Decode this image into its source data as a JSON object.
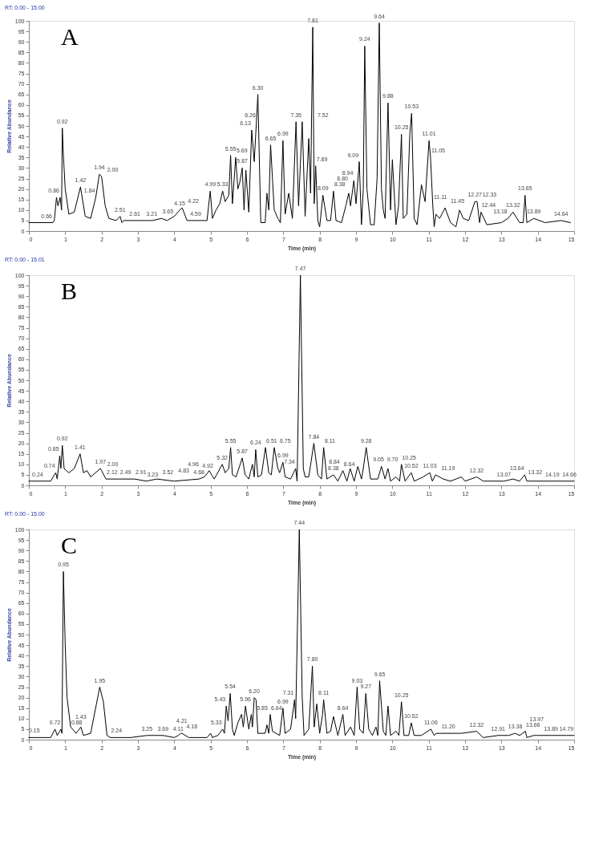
{
  "chart_data": [
    {
      "type": "line",
      "title": "A",
      "subtitle": "RT: 0.00 - 15.00",
      "xlabel": "Time (min)",
      "ylabel": "Relative Abundance",
      "xlim": [
        0,
        15
      ],
      "ylim": [
        0,
        100
      ],
      "xticks": [
        0,
        1,
        2,
        3,
        4,
        5,
        6,
        7,
        8,
        9,
        10,
        11,
        12,
        13,
        14,
        15
      ],
      "yticks": [
        0,
        5,
        10,
        15,
        20,
        25,
        30,
        35,
        40,
        45,
        50,
        55,
        60,
        65,
        70,
        75,
        80,
        85,
        90,
        95,
        100
      ],
      "grid": false,
      "legend": false,
      "series": [
        {
          "color": "#000000",
          "x": [
            0,
            0.66,
            0.7,
            0.76,
            0.8,
            0.86,
            0.9,
            0.92,
            0.95,
            1.0,
            1.1,
            1.25,
            1.42,
            1.55,
            1.7,
            1.84,
            1.94,
            2.0,
            2.1,
            2.2,
            2.4,
            2.51,
            2.56,
            2.61,
            3.0,
            3.21,
            3.4,
            3.65,
            3.8,
            4.0,
            4.15,
            4.22,
            4.35,
            4.59,
            4.9,
            4.99,
            5.05,
            5.15,
            5.25,
            5.33,
            5.4,
            5.5,
            5.55,
            5.6,
            5.69,
            5.75,
            5.8,
            5.87,
            5.92,
            5.97,
            6.05,
            6.13,
            6.2,
            6.26,
            6.3,
            6.38,
            6.5,
            6.55,
            6.6,
            6.65,
            6.75,
            6.85,
            6.92,
            6.99,
            7.05,
            7.15,
            7.25,
            7.35,
            7.42,
            7.52,
            7.6,
            7.7,
            7.75,
            7.81,
            7.85,
            7.89,
            7.95,
            8.0,
            8.09,
            8.2,
            8.3,
            8.38,
            8.45,
            8.6,
            8.72,
            8.8,
            8.85,
            8.94,
            9.0,
            9.09,
            9.15,
            9.2,
            9.24,
            9.3,
            9.4,
            9.5,
            9.58,
            9.64,
            9.7,
            9.75,
            9.8,
            9.88,
            9.95,
            10.0,
            10.1,
            10.17,
            10.25,
            10.3,
            10.4,
            10.48,
            10.53,
            10.6,
            10.68,
            10.8,
            10.9,
            11.01,
            11.05,
            11.11,
            11.15,
            11.2,
            11.3,
            11.45,
            11.6,
            11.75,
            11.85,
            11.95,
            12.1,
            12.27,
            12.33,
            12.4,
            12.44,
            12.6,
            13.0,
            13.18,
            13.32,
            13.5,
            13.6,
            13.65,
            13.7,
            13.89,
            14.2,
            14.64,
            14.9
          ],
          "values": [
            4,
            4,
            5,
            16,
            12,
            16,
            10,
            49,
            36,
            20,
            8,
            9,
            21,
            7,
            6,
            16,
            27,
            26,
            12,
            6,
            5,
            7,
            4,
            5,
            5,
            5,
            5,
            6,
            5,
            7,
            10,
            11,
            5,
            5,
            5,
            19,
            6,
            10,
            13,
            19,
            14,
            17,
            36,
            13,
            35,
            20,
            23,
            30,
            10,
            29,
            9,
            48,
            33,
            52,
            65,
            4,
            4,
            18,
            10,
            41,
            10,
            6,
            4,
            43,
            8,
            18,
            6,
            52,
            12,
            52,
            7,
            44,
            18,
            97,
            13,
            31,
            5,
            2,
            17,
            5,
            5,
            19,
            5,
            4,
            12,
            18,
            12,
            24,
            13,
            33,
            3,
            20,
            88,
            20,
            3,
            3,
            25,
            99,
            20,
            10,
            6,
            61,
            10,
            34,
            3,
            12,
            46,
            6,
            8,
            46,
            56,
            6,
            3,
            22,
            14,
            43,
            35,
            13,
            2,
            8,
            6,
            11,
            4,
            2,
            10,
            6,
            5,
            14,
            14,
            4,
            9,
            3,
            4,
            6,
            9,
            4,
            4,
            17,
            4,
            6,
            4,
            5,
            4
          ]
        }
      ],
      "annotations": [
        {
          "text": "0.66",
          "x": 0.66,
          "y": 4
        },
        {
          "text": "0.86",
          "x": 0.86,
          "y": 16
        },
        {
          "text": "0.92",
          "x": 0.92,
          "y": 49
        },
        {
          "text": "1.42",
          "x": 1.42,
          "y": 21
        },
        {
          "text": "1.84",
          "x": 1.84,
          "y": 16
        },
        {
          "text": "1.94",
          "x": 1.94,
          "y": 27
        },
        {
          "text": "2.00",
          "x": 2.0,
          "y": 26
        },
        {
          "text": "2.51",
          "x": 2.51,
          "y": 7
        },
        {
          "text": "2.61",
          "x": 2.61,
          "y": 5
        },
        {
          "text": "3.21",
          "x": 3.21,
          "y": 5
        },
        {
          "text": "3.65",
          "x": 3.65,
          "y": 6
        },
        {
          "text": "4.15",
          "x": 4.15,
          "y": 10
        },
        {
          "text": "4.22",
          "x": 4.22,
          "y": 11
        },
        {
          "text": "4.59",
          "x": 4.59,
          "y": 5
        },
        {
          "text": "4.99",
          "x": 4.99,
          "y": 19
        },
        {
          "text": "5.33",
          "x": 5.33,
          "y": 19
        },
        {
          "text": "5.55",
          "x": 5.55,
          "y": 36
        },
        {
          "text": "5.69",
          "x": 5.69,
          "y": 35
        },
        {
          "text": "5.87",
          "x": 5.87,
          "y": 30
        },
        {
          "text": "6.13",
          "x": 6.13,
          "y": 48
        },
        {
          "text": "6.26",
          "x": 6.26,
          "y": 52
        },
        {
          "text": "6.30",
          "x": 6.3,
          "y": 65
        },
        {
          "text": "6.65",
          "x": 6.65,
          "y": 41
        },
        {
          "text": "6.99",
          "x": 6.99,
          "y": 43
        },
        {
          "text": "7.35",
          "x": 7.35,
          "y": 52
        },
        {
          "text": "7.52",
          "x": 7.52,
          "y": 52
        },
        {
          "text": "7.81",
          "x": 7.81,
          "y": 97
        },
        {
          "text": "7.89",
          "x": 7.89,
          "y": 31
        },
        {
          "text": "8.09",
          "x": 8.09,
          "y": 17
        },
        {
          "text": "8.38",
          "x": 8.38,
          "y": 19
        },
        {
          "text": "8.80",
          "x": 8.8,
          "y": 18
        },
        {
          "text": "8.94",
          "x": 8.94,
          "y": 24
        },
        {
          "text": "9.09",
          "x": 9.09,
          "y": 33
        },
        {
          "text": "9.24",
          "x": 9.24,
          "y": 88
        },
        {
          "text": "9.64",
          "x": 9.64,
          "y": 99
        },
        {
          "text": "9.88",
          "x": 9.88,
          "y": 61
        },
        {
          "text": "10.25",
          "x": 10.25,
          "y": 46
        },
        {
          "text": "10.53",
          "x": 10.53,
          "y": 56
        },
        {
          "text": "11.01",
          "x": 11.01,
          "y": 43
        },
        {
          "text": "11.05",
          "x": 11.05,
          "y": 35
        },
        {
          "text": "11.11",
          "x": 11.11,
          "y": 13
        },
        {
          "text": "11.45",
          "x": 11.45,
          "y": 11
        },
        {
          "text": "12.27",
          "x": 12.27,
          "y": 14
        },
        {
          "text": "12.33",
          "x": 12.33,
          "y": 14
        },
        {
          "text": "12.44",
          "x": 12.44,
          "y": 9
        },
        {
          "text": "13.18",
          "x": 13.18,
          "y": 6
        },
        {
          "text": "13.32",
          "x": 13.32,
          "y": 9
        },
        {
          "text": "13.65",
          "x": 13.65,
          "y": 17
        },
        {
          "text": "13.89",
          "x": 13.89,
          "y": 6
        },
        {
          "text": "14.64",
          "x": 14.64,
          "y": 5
        }
      ]
    },
    {
      "type": "line",
      "title": "B",
      "subtitle": "RT: 0.00 - 15.01",
      "xlabel": "Time (min)",
      "ylabel": "Relative Abundance",
      "xlim": [
        0,
        15
      ],
      "ylim": [
        0,
        100
      ],
      "xticks": [
        0,
        1,
        2,
        3,
        4,
        5,
        6,
        7,
        8,
        9,
        10,
        11,
        12,
        13,
        14,
        15
      ],
      "yticks": [
        0,
        5,
        10,
        15,
        20,
        25,
        30,
        35,
        40,
        45,
        50,
        55,
        60,
        65,
        70,
        75,
        80,
        85,
        90,
        95,
        100
      ],
      "grid": false,
      "legend": false,
      "series": [
        {
          "color": "#000000",
          "x": [
            0,
            0.24,
            0.6,
            0.7,
            0.74,
            0.78,
            0.85,
            0.88,
            0.92,
            0.97,
            1.1,
            1.25,
            1.41,
            1.5,
            1.6,
            1.7,
            1.97,
            2.0,
            2.12,
            2.49,
            2.91,
            3.23,
            3.52,
            4.0,
            4.68,
            4.83,
            4.92,
            4.96,
            5.1,
            5.32,
            5.4,
            5.5,
            5.55,
            5.6,
            5.7,
            5.87,
            5.95,
            6.05,
            6.15,
            6.2,
            6.24,
            6.3,
            6.4,
            6.51,
            6.6,
            6.67,
            6.75,
            6.85,
            6.9,
            6.99,
            7.05,
            7.2,
            7.34,
            7.38,
            7.47,
            7.55,
            7.6,
            7.7,
            7.84,
            7.95,
            8.05,
            8.11,
            8.2,
            8.38,
            8.5,
            8.64,
            8.75,
            8.84,
            8.95,
            9.05,
            9.15,
            9.2,
            9.28,
            9.4,
            9.6,
            9.7,
            9.8,
            9.88,
            9.95,
            10.1,
            10.2,
            10.25,
            10.35,
            10.52,
            10.6,
            10.85,
            11.03,
            11.1,
            11.19,
            11.4,
            11.6,
            11.9,
            12.0,
            12.32,
            12.5,
            13.07,
            13.32,
            13.5,
            13.64,
            13.7,
            14.19,
            14.66,
            15
          ],
          "values": [
            2,
            2,
            2,
            5,
            6,
            3,
            14,
            8,
            19,
            8,
            6,
            8,
            15,
            6,
            7,
            4,
            8,
            7,
            3,
            3,
            3,
            2,
            3,
            2,
            3,
            4,
            6,
            7,
            3,
            10,
            6,
            8,
            18,
            5,
            4,
            13,
            5,
            3,
            10,
            4,
            17,
            4,
            5,
            18,
            6,
            5,
            18,
            8,
            6,
            11,
            4,
            3,
            8,
            2,
            100,
            8,
            4,
            4,
            20,
            5,
            3,
            18,
            3,
            5,
            2,
            7,
            2,
            8,
            2,
            9,
            3,
            8,
            18,
            3,
            3,
            9,
            3,
            8,
            2,
            4,
            2,
            10,
            2,
            6,
            2,
            4,
            6,
            2,
            5,
            3,
            2,
            4,
            2,
            4,
            2,
            2,
            3,
            2,
            5,
            2,
            2,
            2,
            2
          ]
        }
      ],
      "annotations": [
        {
          "text": "0.24",
          "x": 0.24,
          "y": 2
        },
        {
          "text": "0.74",
          "x": 0.74,
          "y": 6
        },
        {
          "text": "0.85",
          "x": 0.85,
          "y": 14
        },
        {
          "text": "0.92",
          "x": 0.92,
          "y": 19
        },
        {
          "text": "1.41",
          "x": 1.41,
          "y": 15
        },
        {
          "text": "1.97",
          "x": 1.97,
          "y": 8
        },
        {
          "text": "2.00",
          "x": 2.0,
          "y": 7
        },
        {
          "text": "2.12",
          "x": 2.12,
          "y": 3
        },
        {
          "text": "2.49",
          "x": 2.49,
          "y": 3
        },
        {
          "text": "2.91",
          "x": 2.91,
          "y": 3
        },
        {
          "text": "3.23",
          "x": 3.23,
          "y": 2
        },
        {
          "text": "3.52",
          "x": 3.52,
          "y": 3
        },
        {
          "text": "4.68",
          "x": 4.68,
          "y": 3
        },
        {
          "text": "4.83",
          "x": 4.83,
          "y": 4
        },
        {
          "text": "4.92",
          "x": 4.92,
          "y": 6
        },
        {
          "text": "4.96",
          "x": 4.96,
          "y": 7
        },
        {
          "text": "5.32",
          "x": 5.32,
          "y": 10
        },
        {
          "text": "5.55",
          "x": 5.55,
          "y": 18
        },
        {
          "text": "5.87",
          "x": 5.87,
          "y": 13
        },
        {
          "text": "6.24",
          "x": 6.24,
          "y": 17
        },
        {
          "text": "6.51",
          "x": 6.51,
          "y": 18
        },
        {
          "text": "6.75",
          "x": 6.75,
          "y": 18
        },
        {
          "text": "6.99",
          "x": 6.99,
          "y": 11
        },
        {
          "text": "7.34",
          "x": 7.34,
          "y": 8
        },
        {
          "text": "7.47",
          "x": 7.47,
          "y": 100
        },
        {
          "text": "7.84",
          "x": 7.84,
          "y": 20
        },
        {
          "text": "8.11",
          "x": 8.11,
          "y": 18
        },
        {
          "text": "8.38",
          "x": 8.38,
          "y": 5
        },
        {
          "text": "8.64",
          "x": 8.64,
          "y": 7
        },
        {
          "text": "8.84",
          "x": 8.84,
          "y": 8
        },
        {
          "text": "9.05",
          "x": 9.05,
          "y": 9
        },
        {
          "text": "9.28",
          "x": 9.28,
          "y": 18
        },
        {
          "text": "9.70",
          "x": 9.7,
          "y": 9
        },
        {
          "text": "10.25",
          "x": 10.25,
          "y": 10
        },
        {
          "text": "10.52",
          "x": 10.52,
          "y": 6
        },
        {
          "text": "11.03",
          "x": 11.03,
          "y": 6
        },
        {
          "text": "11.19",
          "x": 11.19,
          "y": 5
        },
        {
          "text": "12.32",
          "x": 12.32,
          "y": 4
        },
        {
          "text": "13.07",
          "x": 13.07,
          "y": 2
        },
        {
          "text": "13.32",
          "x": 13.32,
          "y": 3
        },
        {
          "text": "13.64",
          "x": 13.64,
          "y": 5
        },
        {
          "text": "14.19",
          "x": 14.19,
          "y": 2
        },
        {
          "text": "14.66",
          "x": 14.66,
          "y": 2
        }
      ]
    },
    {
      "type": "line",
      "title": "C",
      "subtitle": "RT: 0.00 - 15.00",
      "xlabel": "Time (min)",
      "ylabel": "Relative Abundance",
      "xlim": [
        0,
        15
      ],
      "ylim": [
        0,
        100
      ],
      "xticks": [
        0,
        1,
        2,
        3,
        4,
        5,
        6,
        7,
        8,
        9,
        10,
        11,
        12,
        13,
        14,
        15
      ],
      "yticks": [
        0,
        5,
        10,
        15,
        20,
        25,
        30,
        35,
        40,
        45,
        50,
        55,
        60,
        65,
        70,
        75,
        80,
        85,
        90,
        95,
        100
      ],
      "grid": false,
      "legend": false,
      "series": [
        {
          "color": "#000000",
          "x": [
            0,
            0.15,
            0.6,
            0.72,
            0.78,
            0.85,
            0.88,
            0.91,
            0.95,
            1.0,
            1.05,
            1.15,
            1.3,
            1.43,
            1.5,
            1.7,
            1.95,
            2.05,
            2.15,
            2.24,
            2.8,
            3.25,
            3.69,
            4.0,
            4.11,
            4.18,
            4.21,
            4.4,
            4.9,
            5.0,
            5.05,
            5.2,
            5.33,
            5.38,
            5.43,
            5.48,
            5.54,
            5.6,
            5.65,
            5.75,
            5.85,
            5.9,
            5.96,
            6.05,
            6.12,
            6.15,
            6.2,
            6.25,
            6.3,
            6.5,
            6.55,
            6.6,
            6.64,
            6.7,
            6.9,
            6.99,
            7.05,
            7.2,
            7.31,
            7.34,
            7.44,
            7.52,
            7.57,
            7.7,
            7.8,
            7.85,
            7.92,
            8.0,
            8.08,
            8.11,
            8.2,
            8.3,
            8.38,
            8.5,
            8.64,
            8.7,
            8.85,
            8.95,
            9.03,
            9.1,
            9.2,
            9.27,
            9.35,
            9.45,
            9.55,
            9.6,
            9.65,
            9.75,
            9.82,
            9.88,
            9.95,
            10.1,
            10.18,
            10.25,
            10.32,
            10.45,
            10.52,
            10.6,
            10.8,
            11.06,
            11.15,
            11.2,
            11.45,
            11.9,
            12.32,
            12.5,
            12.91,
            13.2,
            13.38,
            13.5,
            13.66,
            13.7,
            13.89,
            13.97,
            14.79,
            15
          ],
          "values": [
            1,
            1,
            1,
            5,
            2,
            4,
            5,
            3,
            80,
            45,
            20,
            6,
            3,
            6,
            2,
            3,
            25,
            18,
            2,
            1,
            1,
            2,
            2,
            1,
            2,
            3,
            3,
            1,
            1,
            3,
            1,
            2,
            5,
            3,
            16,
            9,
            22,
            5,
            2,
            8,
            12,
            6,
            16,
            5,
            12,
            6,
            20,
            19,
            3,
            3,
            7,
            3,
            12,
            4,
            2,
            15,
            3,
            5,
            19,
            10,
            100,
            20,
            2,
            5,
            35,
            6,
            17,
            3,
            12,
            19,
            3,
            4,
            11,
            2,
            12,
            2,
            6,
            2,
            25,
            5,
            3,
            22,
            5,
            2,
            6,
            2,
            28,
            4,
            2,
            16,
            2,
            4,
            2,
            18,
            2,
            2,
            8,
            2,
            2,
            5,
            2,
            3,
            3,
            3,
            4,
            1,
            2,
            2,
            3,
            2,
            4,
            1,
            2,
            2,
            2,
            2
          ]
        }
      ],
      "annotations": [
        {
          "text": "0.15",
          "x": 0.15,
          "y": 1
        },
        {
          "text": "0.72",
          "x": 0.72,
          "y": 5
        },
        {
          "text": "0.88",
          "x": 0.88,
          "y": 5
        },
        {
          "text": "0.95",
          "x": 0.95,
          "y": 80
        },
        {
          "text": "1.43",
          "x": 1.43,
          "y": 6
        },
        {
          "text": "1.95",
          "x": 1.95,
          "y": 25
        },
        {
          "text": "2.24",
          "x": 2.24,
          "y": 1
        },
        {
          "text": "3.25",
          "x": 3.25,
          "y": 2
        },
        {
          "text": "3.69",
          "x": 3.69,
          "y": 2
        },
        {
          "text": "4.11",
          "x": 4.11,
          "y": 2
        },
        {
          "text": "4.18",
          "x": 4.18,
          "y": 3
        },
        {
          "text": "4.21",
          "x": 4.21,
          "y": 3
        },
        {
          "text": "5.33",
          "x": 5.33,
          "y": 5
        },
        {
          "text": "5.43",
          "x": 5.43,
          "y": 16
        },
        {
          "text": "5.54",
          "x": 5.54,
          "y": 22
        },
        {
          "text": "5.85",
          "x": 5.85,
          "y": 12
        },
        {
          "text": "5.96",
          "x": 5.96,
          "y": 16
        },
        {
          "text": "6.20",
          "x": 6.2,
          "y": 20
        },
        {
          "text": "6.64",
          "x": 6.64,
          "y": 12
        },
        {
          "text": "6.99",
          "x": 6.99,
          "y": 15
        },
        {
          "text": "7.31",
          "x": 7.31,
          "y": 19
        },
        {
          "text": "7.44",
          "x": 7.44,
          "y": 100
        },
        {
          "text": "7.80",
          "x": 7.8,
          "y": 35
        },
        {
          "text": "8.11",
          "x": 8.11,
          "y": 19
        },
        {
          "text": "8.64",
          "x": 8.64,
          "y": 12
        },
        {
          "text": "9.03",
          "x": 9.03,
          "y": 25
        },
        {
          "text": "9.27",
          "x": 9.27,
          "y": 22
        },
        {
          "text": "9.65",
          "x": 9.65,
          "y": 28
        },
        {
          "text": "10.25",
          "x": 10.25,
          "y": 18
        },
        {
          "text": "10.52",
          "x": 10.52,
          "y": 8
        },
        {
          "text": "11.06",
          "x": 11.06,
          "y": 5
        },
        {
          "text": "11.20",
          "x": 11.2,
          "y": 3
        },
        {
          "text": "12.32",
          "x": 12.32,
          "y": 4
        },
        {
          "text": "12.91",
          "x": 12.91,
          "y": 2
        },
        {
          "text": "13.38",
          "x": 13.38,
          "y": 3
        },
        {
          "text": "13.66",
          "x": 13.66,
          "y": 4
        },
        {
          "text": "13.89",
          "x": 13.89,
          "y": 2
        },
        {
          "text": "13.97",
          "x": 13.97,
          "y": 2
        },
        {
          "text": "14.79",
          "x": 14.79,
          "y": 2
        }
      ]
    }
  ]
}
